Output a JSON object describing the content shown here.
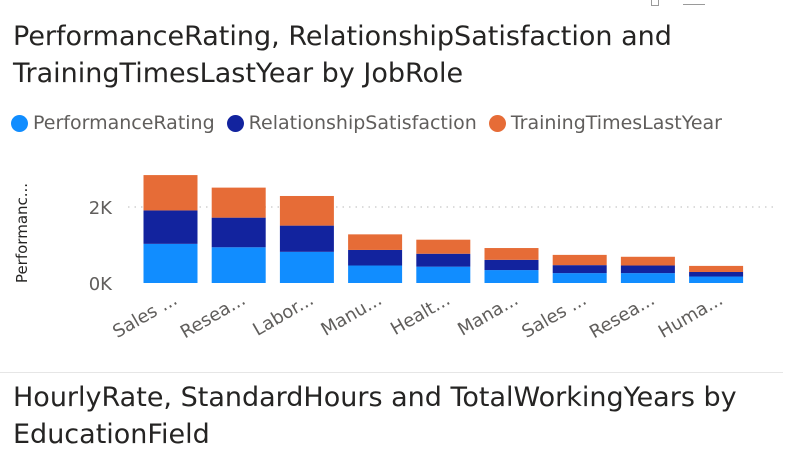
{
  "visuals": [
    {
      "title": "PerformanceRating, RelationshipSatisfaction and TrainingTimesLastYear by JobRole"
    },
    {
      "title": "HourlyRate, StandardHours and TotalWorkingYears by EducationField"
    }
  ],
  "colors": {
    "PerformanceRating": "#118dff",
    "RelationshipSatisfaction": "#12239e",
    "TrainingTimesLastYear": "#e66c37"
  },
  "chart_data": {
    "type": "bar",
    "stacked": true,
    "title": "PerformanceRating, RelationshipSatisfaction and TrainingTimesLastYear by JobRole",
    "ylabel": "Performanc...",
    "xlabel": "",
    "ylim": [
      0,
      3000
    ],
    "yticks": [
      {
        "value": 0,
        "label": "0K"
      },
      {
        "value": 2000,
        "label": "2K"
      }
    ],
    "grid": true,
    "legend_position": "top-left",
    "categories": [
      "Sales ...",
      "Resea...",
      "Labor...",
      "Manu...",
      "Healt...",
      "Mana...",
      "Sales ...",
      "Resea...",
      "Huma..."
    ],
    "series": [
      {
        "name": "PerformanceRating",
        "values": [
          1030,
          940,
          820,
          460,
          430,
          340,
          260,
          260,
          170
        ]
      },
      {
        "name": "RelationshipSatisfaction",
        "values": [
          880,
          780,
          690,
          410,
          340,
          270,
          210,
          200,
          120
        ]
      },
      {
        "name": "TrainingTimesLastYear",
        "values": [
          930,
          790,
          780,
          410,
          370,
          310,
          270,
          230,
          160
        ]
      }
    ]
  }
}
